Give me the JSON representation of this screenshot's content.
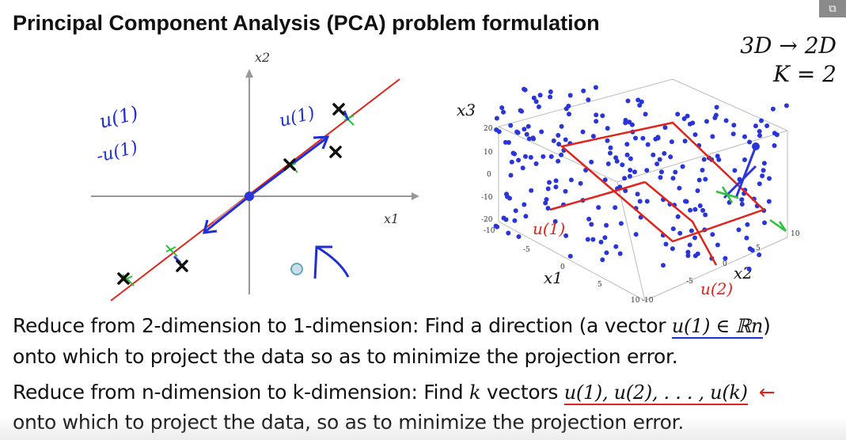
{
  "slide": {
    "title": "Principal Component Analysis (PCA) problem formulation",
    "dim_change": "3D → 2D",
    "k_value": "K = 2"
  },
  "plot2d": {
    "x_label": "x1",
    "y_label": "x2",
    "annotation_u": "u(1)",
    "annotation_neg_u": "-u(1)",
    "annotation_u_arrow": "u(1)"
  },
  "plot3d": {
    "x_label": "x1",
    "y_label": "x2",
    "z_label": "x3",
    "z_ticks": [
      "20",
      "10",
      "0",
      "-10",
      "-20"
    ],
    "x_ticks": [
      "-10",
      "-5",
      "0",
      "5",
      "10"
    ],
    "y_ticks": [
      "-10",
      "-5",
      "0",
      "5",
      "10"
    ],
    "annotation_u1": "u(1)",
    "annotation_u2": "u(2)"
  },
  "text": {
    "line1_a": "Reduce from 2-dimension to 1-dimension: Find a direction (a vector ",
    "line1_math": "u(1) ∈ ℝn",
    "line1_b": ")",
    "line2": "onto which to project the data so as to minimize the projection error.",
    "line3_a": "Reduce from n-dimension to k-dimension: Find ",
    "line3_k": "k",
    "line3_b": " vectors ",
    "line3_math": "u(1), u(2), . . . , u(k)",
    "line4": "onto which to project the data, so as to minimize the projection error."
  },
  "colors": {
    "data_blue": "#2a35d8",
    "annot_red": "#e0241b",
    "annot_green": "#29c23a",
    "ink_blue": "#1f2fd6"
  }
}
